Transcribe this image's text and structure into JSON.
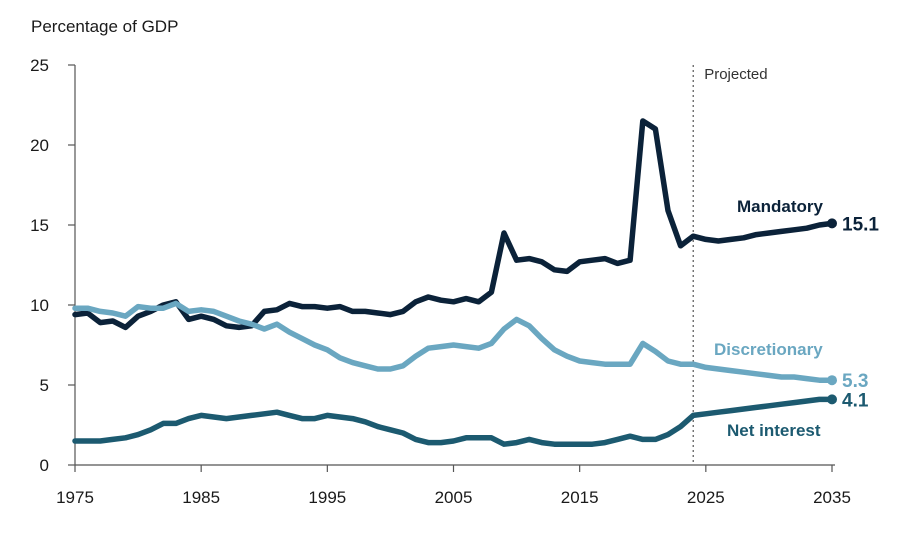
{
  "chart_data": {
    "type": "line",
    "ylabel": "Percentage of GDP",
    "xlim": [
      1975,
      2035
    ],
    "ylim": [
      0,
      25
    ],
    "x_ticks": [
      1975,
      1985,
      1995,
      2005,
      2015,
      2025,
      2035
    ],
    "y_ticks": [
      0,
      5,
      10,
      15,
      20,
      25
    ],
    "grid": false,
    "projection_start": 2024,
    "projection_label": "Projected",
    "series": [
      {
        "name": "Mandatory",
        "color": "#0b2239",
        "end_label": "15.1",
        "x": [
          1975,
          1976,
          1977,
          1978,
          1979,
          1980,
          1981,
          1982,
          1983,
          1984,
          1985,
          1986,
          1987,
          1988,
          1989,
          1990,
          1991,
          1992,
          1993,
          1994,
          1995,
          1996,
          1997,
          1998,
          1999,
          2000,
          2001,
          2002,
          2003,
          2004,
          2005,
          2006,
          2007,
          2008,
          2009,
          2010,
          2011,
          2012,
          2013,
          2014,
          2015,
          2016,
          2017,
          2018,
          2019,
          2020,
          2021,
          2022,
          2023,
          2024,
          2025,
          2026,
          2027,
          2028,
          2029,
          2030,
          2031,
          2032,
          2033,
          2034,
          2035
        ],
        "values": [
          9.4,
          9.5,
          8.9,
          9.0,
          8.6,
          9.3,
          9.6,
          10.0,
          10.2,
          9.1,
          9.3,
          9.1,
          8.7,
          8.6,
          8.7,
          9.6,
          9.7,
          10.1,
          9.9,
          9.9,
          9.8,
          9.9,
          9.6,
          9.6,
          9.5,
          9.4,
          9.6,
          10.2,
          10.5,
          10.3,
          10.2,
          10.4,
          10.2,
          10.8,
          14.5,
          12.8,
          12.9,
          12.7,
          12.2,
          12.1,
          12.7,
          12.8,
          12.9,
          12.6,
          12.8,
          21.5,
          21.0,
          15.9,
          13.7,
          14.3,
          14.1,
          14.0,
          14.1,
          14.2,
          14.4,
          14.5,
          14.6,
          14.7,
          14.8,
          15.0,
          15.1
        ]
      },
      {
        "name": "Discretionary",
        "color": "#6aa7c1",
        "end_label": "5.3",
        "x": [
          1975,
          1976,
          1977,
          1978,
          1979,
          1980,
          1981,
          1982,
          1983,
          1984,
          1985,
          1986,
          1987,
          1988,
          1989,
          1990,
          1991,
          1992,
          1993,
          1994,
          1995,
          1996,
          1997,
          1998,
          1999,
          2000,
          2001,
          2002,
          2003,
          2004,
          2005,
          2006,
          2007,
          2008,
          2009,
          2010,
          2011,
          2012,
          2013,
          2014,
          2015,
          2016,
          2017,
          2018,
          2019,
          2020,
          2021,
          2022,
          2023,
          2024,
          2025,
          2026,
          2027,
          2028,
          2029,
          2030,
          2031,
          2032,
          2033,
          2034,
          2035
        ],
        "values": [
          9.8,
          9.8,
          9.6,
          9.5,
          9.3,
          9.9,
          9.8,
          9.8,
          10.1,
          9.6,
          9.7,
          9.6,
          9.3,
          9.0,
          8.8,
          8.5,
          8.8,
          8.3,
          7.9,
          7.5,
          7.2,
          6.7,
          6.4,
          6.2,
          6.0,
          6.0,
          6.2,
          6.8,
          7.3,
          7.4,
          7.5,
          7.4,
          7.3,
          7.6,
          8.5,
          9.1,
          8.7,
          7.9,
          7.2,
          6.8,
          6.5,
          6.4,
          6.3,
          6.3,
          6.3,
          7.6,
          7.1,
          6.5,
          6.3,
          6.3,
          6.1,
          6.0,
          5.9,
          5.8,
          5.7,
          5.6,
          5.5,
          5.5,
          5.4,
          5.3,
          5.3
        ]
      },
      {
        "name": "Net interest",
        "color": "#1c5a70",
        "end_label": "4.1",
        "x": [
          1975,
          1976,
          1977,
          1978,
          1979,
          1980,
          1981,
          1982,
          1983,
          1984,
          1985,
          1986,
          1987,
          1988,
          1989,
          1990,
          1991,
          1992,
          1993,
          1994,
          1995,
          1996,
          1997,
          1998,
          1999,
          2000,
          2001,
          2002,
          2003,
          2004,
          2005,
          2006,
          2007,
          2008,
          2009,
          2010,
          2011,
          2012,
          2013,
          2014,
          2015,
          2016,
          2017,
          2018,
          2019,
          2020,
          2021,
          2022,
          2023,
          2024,
          2025,
          2026,
          2027,
          2028,
          2029,
          2030,
          2031,
          2032,
          2033,
          2034,
          2035
        ],
        "values": [
          1.5,
          1.5,
          1.5,
          1.6,
          1.7,
          1.9,
          2.2,
          2.6,
          2.6,
          2.9,
          3.1,
          3.0,
          2.9,
          3.0,
          3.1,
          3.2,
          3.3,
          3.1,
          2.9,
          2.9,
          3.1,
          3.0,
          2.9,
          2.7,
          2.4,
          2.2,
          2.0,
          1.6,
          1.4,
          1.4,
          1.5,
          1.7,
          1.7,
          1.7,
          1.3,
          1.4,
          1.6,
          1.4,
          1.3,
          1.3,
          1.3,
          1.3,
          1.4,
          1.6,
          1.8,
          1.6,
          1.6,
          1.9,
          2.4,
          3.1,
          3.2,
          3.3,
          3.4,
          3.5,
          3.6,
          3.7,
          3.8,
          3.9,
          4.0,
          4.1,
          4.1
        ]
      }
    ]
  }
}
